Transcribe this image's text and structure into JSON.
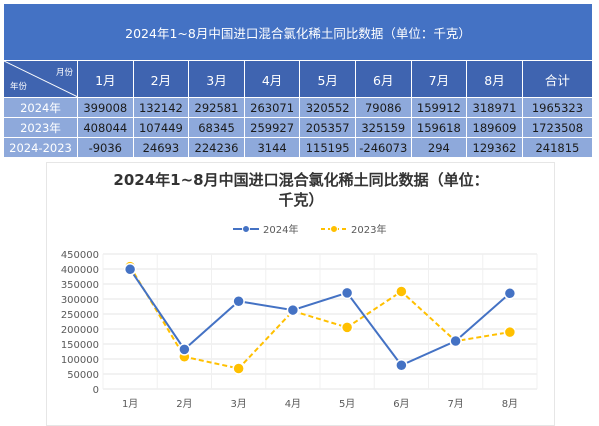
{
  "table": {
    "title": "2024年1~8月中国进口混合氯化稀土同比数据（单位：千克）",
    "corner_top": "月份",
    "corner_bottom": "年份",
    "columns": [
      "1月",
      "2月",
      "3月",
      "4月",
      "5月",
      "6月",
      "7月",
      "8月",
      "合计"
    ],
    "rows": [
      {
        "label": "2024年",
        "values": [
          "399008",
          "132142",
          "292581",
          "263071",
          "320552",
          "79086",
          "159912",
          "318971",
          "1965323"
        ]
      },
      {
        "label": "2023年",
        "values": [
          "408044",
          "107449",
          "68345",
          "259927",
          "205357",
          "325159",
          "159618",
          "189609",
          "1723508"
        ]
      },
      {
        "label": "2024-2023",
        "values": [
          "-9036",
          "24693",
          "224236",
          "3144",
          "115195",
          "-246073",
          "294",
          "129362",
          "241815"
        ]
      }
    ]
  },
  "chart_data": {
    "type": "line",
    "title": "2024年1~8月中国进口混合氯化稀土同比数据（单位：千克）",
    "categories": [
      "1月",
      "2月",
      "3月",
      "4月",
      "5月",
      "6月",
      "7月",
      "8月"
    ],
    "series": [
      {
        "name": "2024年",
        "color": "#4472c4",
        "dash": "solid",
        "values": [
          399008,
          132142,
          292581,
          263071,
          320552,
          79086,
          159912,
          318971
        ]
      },
      {
        "name": "2023年",
        "color": "#ffc000",
        "dash": "dashed",
        "values": [
          408044,
          107449,
          68345,
          259927,
          205357,
          325159,
          159618,
          189609
        ]
      }
    ],
    "ylim": [
      0,
      450000
    ],
    "yticks": [
      0,
      50000,
      100000,
      150000,
      200000,
      250000,
      300000,
      350000,
      400000,
      450000
    ],
    "legend_position": "top-center",
    "grid": true
  }
}
